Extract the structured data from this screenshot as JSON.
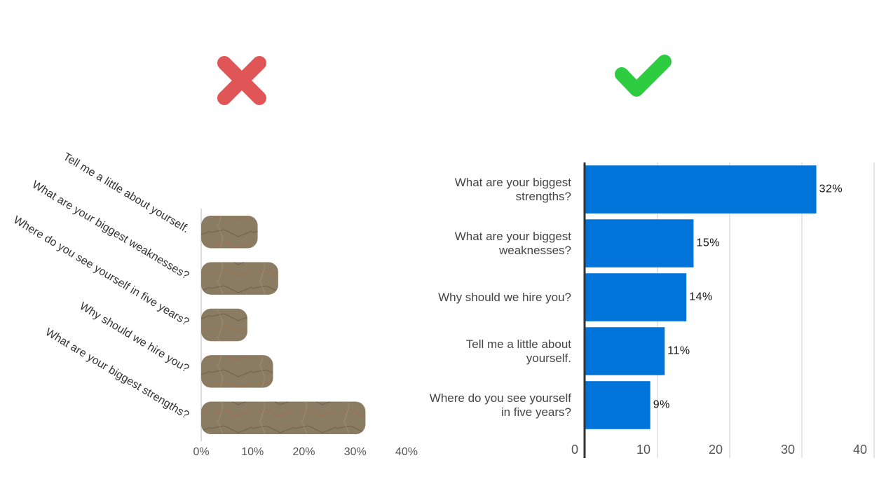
{
  "chart_data": [
    {
      "type": "bar",
      "orientation": "horizontal",
      "style": "textured",
      "categories": [
        "Tell me a little about yourself.",
        "What are your biggest weaknesses?",
        "Where do you see yourself in five years?",
        "Why should we hire you?",
        "What are your biggest strengths?"
      ],
      "values": [
        11,
        15,
        9,
        14,
        32
      ],
      "color": "#8a7c62",
      "xlim": [
        0,
        40
      ],
      "xticks": [
        {
          "value": 0,
          "label": "0%"
        },
        {
          "value": 10,
          "label": "10%"
        },
        {
          "value": 20,
          "label": "20%"
        },
        {
          "value": 30,
          "label": "30%"
        },
        {
          "value": 40,
          "label": "40%"
        }
      ],
      "grid": false
    },
    {
      "type": "bar",
      "orientation": "horizontal",
      "style": "flat",
      "categories": [
        "What are your biggest strengths?",
        "What are your biggest weaknesses?",
        "Why should we hire you?",
        "Tell me a little about yourself.",
        "Where do you see yourself in five years?"
      ],
      "values": [
        32,
        15,
        14,
        11,
        9
      ],
      "value_labels": [
        "32%",
        "15%",
        "14%",
        "11%",
        "9%"
      ],
      "color": "#0074d9",
      "xlim": [
        0,
        40
      ],
      "xticks": [
        0,
        10,
        20,
        30,
        40
      ],
      "grid": true
    }
  ]
}
